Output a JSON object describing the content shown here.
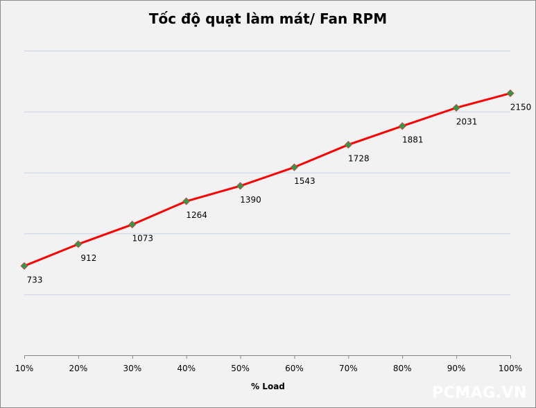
{
  "chart_data": {
    "type": "line",
    "title": "Tốc độ quạt làm mát/ Fan RPM",
    "xlabel": "% Load",
    "ylabel": "",
    "categories": [
      "10%",
      "20%",
      "30%",
      "40%",
      "50%",
      "60%",
      "70%",
      "80%",
      "90%",
      "100%"
    ],
    "series": [
      {
        "name": "Fan RPM",
        "values": [
          733,
          912,
          1073,
          1264,
          1390,
          1543,
          1728,
          1881,
          2031,
          2150
        ],
        "color": "#ff0000",
        "marker_color": "#2e9a47"
      }
    ],
    "ylim": [
      0,
      2500
    ],
    "ygrid_step": 500,
    "grid": true,
    "legend": "none"
  },
  "watermark": "PCMAG.VN"
}
